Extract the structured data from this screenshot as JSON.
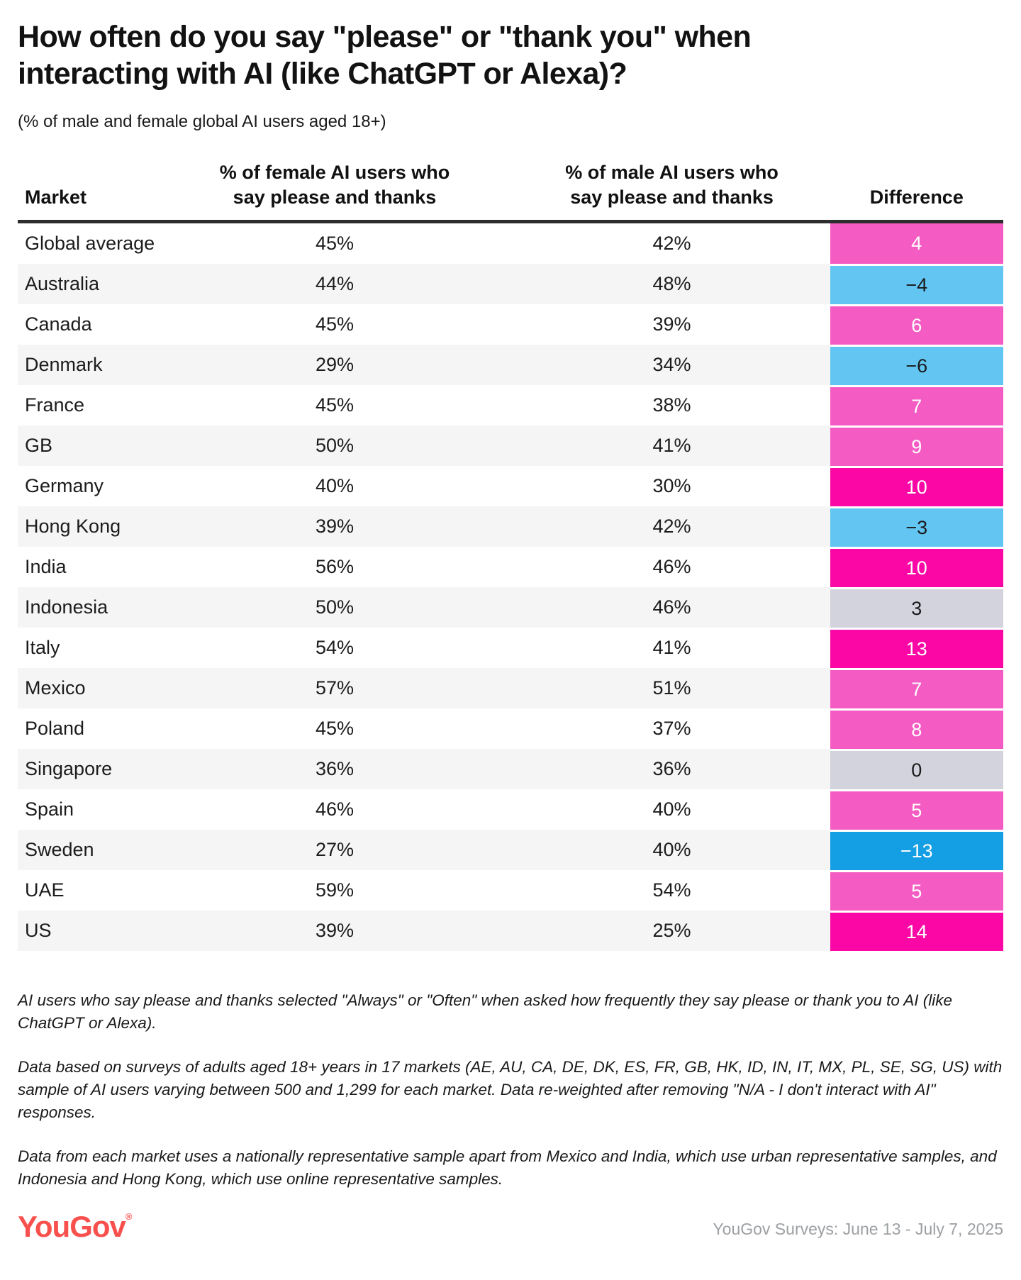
{
  "title": "How often do you say \"please\" or \"thank you\" when interacting with AI (like ChatGPT or Alexa)?",
  "subtitle": "(% of male and female global AI users aged 18+)",
  "colors": {
    "pink": "#f45cc3",
    "magenta": "#fa07a5",
    "light_blue": "#63c5f1",
    "strong_blue": "#149ee4",
    "neutral_gray": "#d2d3dc",
    "logo_red": "#f8514d",
    "header_rule": "#2d2d2d",
    "alt_row_bg": "#f5f5f5"
  },
  "table": {
    "columns": [
      "Market",
      "% of female AI users who say please and thanks",
      "% of male AI users who say please and thanks",
      "Difference"
    ],
    "rows": [
      {
        "market": "Global average",
        "female": "45%",
        "male": "42%",
        "diff": "4",
        "diff_bg": "#f45cc3",
        "diff_fg": "#ffffff"
      },
      {
        "market": "Australia",
        "female": "44%",
        "male": "48%",
        "diff": "−4",
        "diff_bg": "#63c5f1",
        "diff_fg": "#1a1a1a"
      },
      {
        "market": "Canada",
        "female": "45%",
        "male": "39%",
        "diff": "6",
        "diff_bg": "#f45cc3",
        "diff_fg": "#ffffff"
      },
      {
        "market": "Denmark",
        "female": "29%",
        "male": "34%",
        "diff": "−6",
        "diff_bg": "#63c5f1",
        "diff_fg": "#1a1a1a"
      },
      {
        "market": "France",
        "female": "45%",
        "male": "38%",
        "diff": "7",
        "diff_bg": "#f45cc3",
        "diff_fg": "#ffffff"
      },
      {
        "market": "GB",
        "female": "50%",
        "male": "41%",
        "diff": "9",
        "diff_bg": "#f45cc3",
        "diff_fg": "#ffffff"
      },
      {
        "market": "Germany",
        "female": "40%",
        "male": "30%",
        "diff": "10",
        "diff_bg": "#fa07a5",
        "diff_fg": "#ffffff"
      },
      {
        "market": "Hong Kong",
        "female": "39%",
        "male": "42%",
        "diff": "−3",
        "diff_bg": "#63c5f1",
        "diff_fg": "#1a1a1a"
      },
      {
        "market": "India",
        "female": "56%",
        "male": "46%",
        "diff": "10",
        "diff_bg": "#fa07a5",
        "diff_fg": "#ffffff"
      },
      {
        "market": "Indonesia",
        "female": "50%",
        "male": "46%",
        "diff": "3",
        "diff_bg": "#d2d3dc",
        "diff_fg": "#1a1a1a"
      },
      {
        "market": "Italy",
        "female": "54%",
        "male": "41%",
        "diff": "13",
        "diff_bg": "#fa07a5",
        "diff_fg": "#ffffff"
      },
      {
        "market": "Mexico",
        "female": "57%",
        "male": "51%",
        "diff": "7",
        "diff_bg": "#f45cc3",
        "diff_fg": "#ffffff"
      },
      {
        "market": "Poland",
        "female": "45%",
        "male": "37%",
        "diff": "8",
        "diff_bg": "#f45cc3",
        "diff_fg": "#ffffff"
      },
      {
        "market": "Singapore",
        "female": "36%",
        "male": "36%",
        "diff": "0",
        "diff_bg": "#d2d3dc",
        "diff_fg": "#1a1a1a"
      },
      {
        "market": "Spain",
        "female": "46%",
        "male": "40%",
        "diff": "5",
        "diff_bg": "#f45cc3",
        "diff_fg": "#ffffff"
      },
      {
        "market": "Sweden",
        "female": "27%",
        "male": "40%",
        "diff": "−13",
        "diff_bg": "#149ee4",
        "diff_fg": "#ffffff"
      },
      {
        "market": "UAE",
        "female": "59%",
        "male": "54%",
        "diff": "5",
        "diff_bg": "#f45cc3",
        "diff_fg": "#ffffff"
      },
      {
        "market": "US",
        "female": "39%",
        "male": "25%",
        "diff": "14",
        "diff_bg": "#fa07a5",
        "diff_fg": "#ffffff"
      }
    ]
  },
  "chart_data": {
    "type": "table",
    "title": "How often do you say \"please\" or \"thank you\" when interacting with AI (like ChatGPT or Alexa)?",
    "subtitle": "(% of male and female global AI users aged 18+)",
    "categories": [
      "Global average",
      "Australia",
      "Canada",
      "Denmark",
      "France",
      "GB",
      "Germany",
      "Hong Kong",
      "India",
      "Indonesia",
      "Italy",
      "Mexico",
      "Poland",
      "Singapore",
      "Spain",
      "Sweden",
      "UAE",
      "US"
    ],
    "series": [
      {
        "name": "% of female AI users who say please and thanks",
        "values": [
          45,
          44,
          45,
          29,
          45,
          50,
          40,
          39,
          56,
          50,
          54,
          57,
          45,
          36,
          46,
          27,
          59,
          39
        ]
      },
      {
        "name": "% of male AI users who say please and thanks",
        "values": [
          42,
          48,
          39,
          34,
          38,
          41,
          30,
          42,
          46,
          46,
          41,
          51,
          37,
          36,
          40,
          40,
          54,
          25
        ]
      },
      {
        "name": "Difference",
        "values": [
          4,
          -4,
          6,
          -6,
          7,
          9,
          10,
          -3,
          10,
          3,
          13,
          7,
          8,
          0,
          5,
          -13,
          5,
          14
        ]
      }
    ]
  },
  "footnotes": [
    "AI users who say please and thanks selected \"Always\" or \"Often\" when asked how frequently they say please or thank you to AI (like ChatGPT or Alexa).",
    "Data based on surveys of adults aged 18+ years in 17 markets (AE, AU, CA, DE, DK, ES, FR, GB, HK, ID, IN, IT, MX, PL, SE, SG, US) with sample of AI users varying between 500 and 1,299 for each market. Data re-weighted after removing \"N/A - I don't interact with AI\" responses.",
    "Data from each market uses a nationally representative sample apart from Mexico and India, which use urban representative samples, and Indonesia and Hong Kong, which use online representative samples."
  ],
  "footer": {
    "logo": "YouGov",
    "reg": "®",
    "source": "YouGov Surveys: June 13 - July 7, 2025"
  }
}
